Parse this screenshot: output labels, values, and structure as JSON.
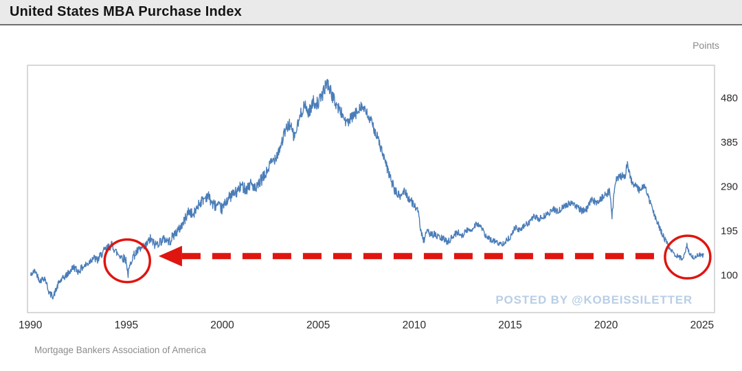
{
  "chart_data": {
    "type": "line",
    "title": "United States MBA Purchase Index",
    "ylabel": "Points",
    "xlabel": "",
    "x_ticks": [
      1990,
      1995,
      2000,
      2005,
      2010,
      2015,
      2020,
      2025
    ],
    "y_ticks": [
      100,
      195,
      290,
      385,
      480
    ],
    "xlim": [
      1989.85,
      2025.65
    ],
    "ylim": [
      20,
      550
    ],
    "grid": false,
    "legend": "none",
    "line_color": "#4a7db8",
    "axis_text_color": "#2b2b2b",
    "plot_border_color": "#cccccc",
    "source": "Mortgage Bankers Association of America",
    "series": [
      {
        "name": "MBA Purchase Index",
        "x": [
          1990.0,
          1990.25,
          1990.5,
          1990.75,
          1991.0,
          1991.2,
          1991.5,
          1991.75,
          1992.0,
          1992.25,
          1992.5,
          1992.75,
          1993.0,
          1993.25,
          1993.5,
          1993.75,
          1994.0,
          1994.25,
          1994.5,
          1994.75,
          1995.0,
          1995.08,
          1995.3,
          1995.6,
          1995.85,
          1996.0,
          1996.25,
          1996.5,
          1996.75,
          1997.0,
          1997.25,
          1997.5,
          1997.75,
          1998.0,
          1998.25,
          1998.5,
          1998.75,
          1999.0,
          1999.25,
          1999.5,
          1999.75,
          2000.0,
          2000.25,
          2000.5,
          2000.75,
          2001.0,
          2001.25,
          2001.5,
          2001.75,
          2002.0,
          2002.25,
          2002.5,
          2002.75,
          2003.0,
          2003.25,
          2003.5,
          2003.75,
          2004.0,
          2004.25,
          2004.5,
          2004.75,
          2005.0,
          2005.25,
          2005.45,
          2005.6,
          2005.75,
          2006.0,
          2006.25,
          2006.5,
          2006.75,
          2007.0,
          2007.2,
          2007.4,
          2007.6,
          2007.8,
          2008.0,
          2008.25,
          2008.5,
          2008.75,
          2009.0,
          2009.25,
          2009.5,
          2009.75,
          2010.0,
          2010.2,
          2010.45,
          2010.7,
          2011.0,
          2011.25,
          2011.5,
          2011.75,
          2012.0,
          2012.25,
          2012.5,
          2012.75,
          2013.0,
          2013.25,
          2013.5,
          2013.75,
          2014.0,
          2014.25,
          2014.5,
          2014.75,
          2015.0,
          2015.25,
          2015.5,
          2015.75,
          2016.0,
          2016.25,
          2016.5,
          2016.75,
          2017.0,
          2017.25,
          2017.5,
          2017.75,
          2018.0,
          2018.25,
          2018.5,
          2018.75,
          2019.0,
          2019.25,
          2019.5,
          2019.75,
          2020.0,
          2020.2,
          2020.3,
          2020.5,
          2020.75,
          2021.0,
          2021.1,
          2021.3,
          2021.5,
          2021.75,
          2022.0,
          2022.25,
          2022.5,
          2022.75,
          2023.0,
          2023.25,
          2023.5,
          2023.75,
          2024.0,
          2024.2,
          2024.4,
          2024.6,
          2024.8,
          2025.0,
          2025.1
        ],
        "y": [
          100,
          110,
          88,
          95,
          60,
          55,
          85,
          95,
          105,
          118,
          108,
          118,
          125,
          138,
          132,
          148,
          158,
          165,
          148,
          140,
          132,
          100,
          138,
          152,
          158,
          162,
          178,
          165,
          172,
          178,
          172,
          188,
          198,
          215,
          238,
          228,
          252,
          262,
          272,
          252,
          248,
          242,
          262,
          272,
          278,
          292,
          285,
          298,
          282,
          302,
          315,
          338,
          352,
          372,
          405,
          425,
          395,
          432,
          465,
          448,
          472,
          468,
          490,
          515,
          500,
          482,
          462,
          445,
          425,
          438,
          448,
          465,
          455,
          440,
          425,
          405,
          375,
          340,
          310,
          280,
          268,
          282,
          262,
          252,
          235,
          172,
          192,
          188,
          182,
          178,
          172,
          182,
          192,
          186,
          196,
          198,
          212,
          202,
          182,
          176,
          172,
          166,
          172,
          182,
          202,
          196,
          206,
          214,
          226,
          220,
          226,
          232,
          242,
          236,
          246,
          252,
          256,
          246,
          238,
          242,
          262,
          256,
          266,
          272,
          282,
          225,
          305,
          312,
          315,
          342,
          305,
          292,
          282,
          292,
          262,
          232,
          205,
          182,
          162,
          148,
          140,
          134,
          165,
          142,
          138,
          144,
          142,
          145
        ]
      }
    ],
    "noise": {
      "seed": 42,
      "x": [
        1990,
        1994,
        1998,
        2002,
        2005,
        2008,
        2010,
        2014,
        2019,
        2021,
        2023,
        2025.2
      ],
      "v": [
        6,
        9,
        11,
        13,
        14,
        12,
        9,
        6,
        7,
        9,
        6,
        5
      ]
    },
    "annotations": {
      "color": "#df150f",
      "circles": [
        {
          "x": 1995.05,
          "y": 131,
          "label": "1995 low"
        },
        {
          "x": 2024.25,
          "y": 139,
          "label": "2024 low"
        }
      ],
      "arrow": {
        "y_value": 141,
        "x_tip": 1996.9,
        "x_tail": 2022.8,
        "direction": "left",
        "style": "dashed"
      },
      "watermark": "POSTED BY @KOBEISSILETTER"
    }
  }
}
